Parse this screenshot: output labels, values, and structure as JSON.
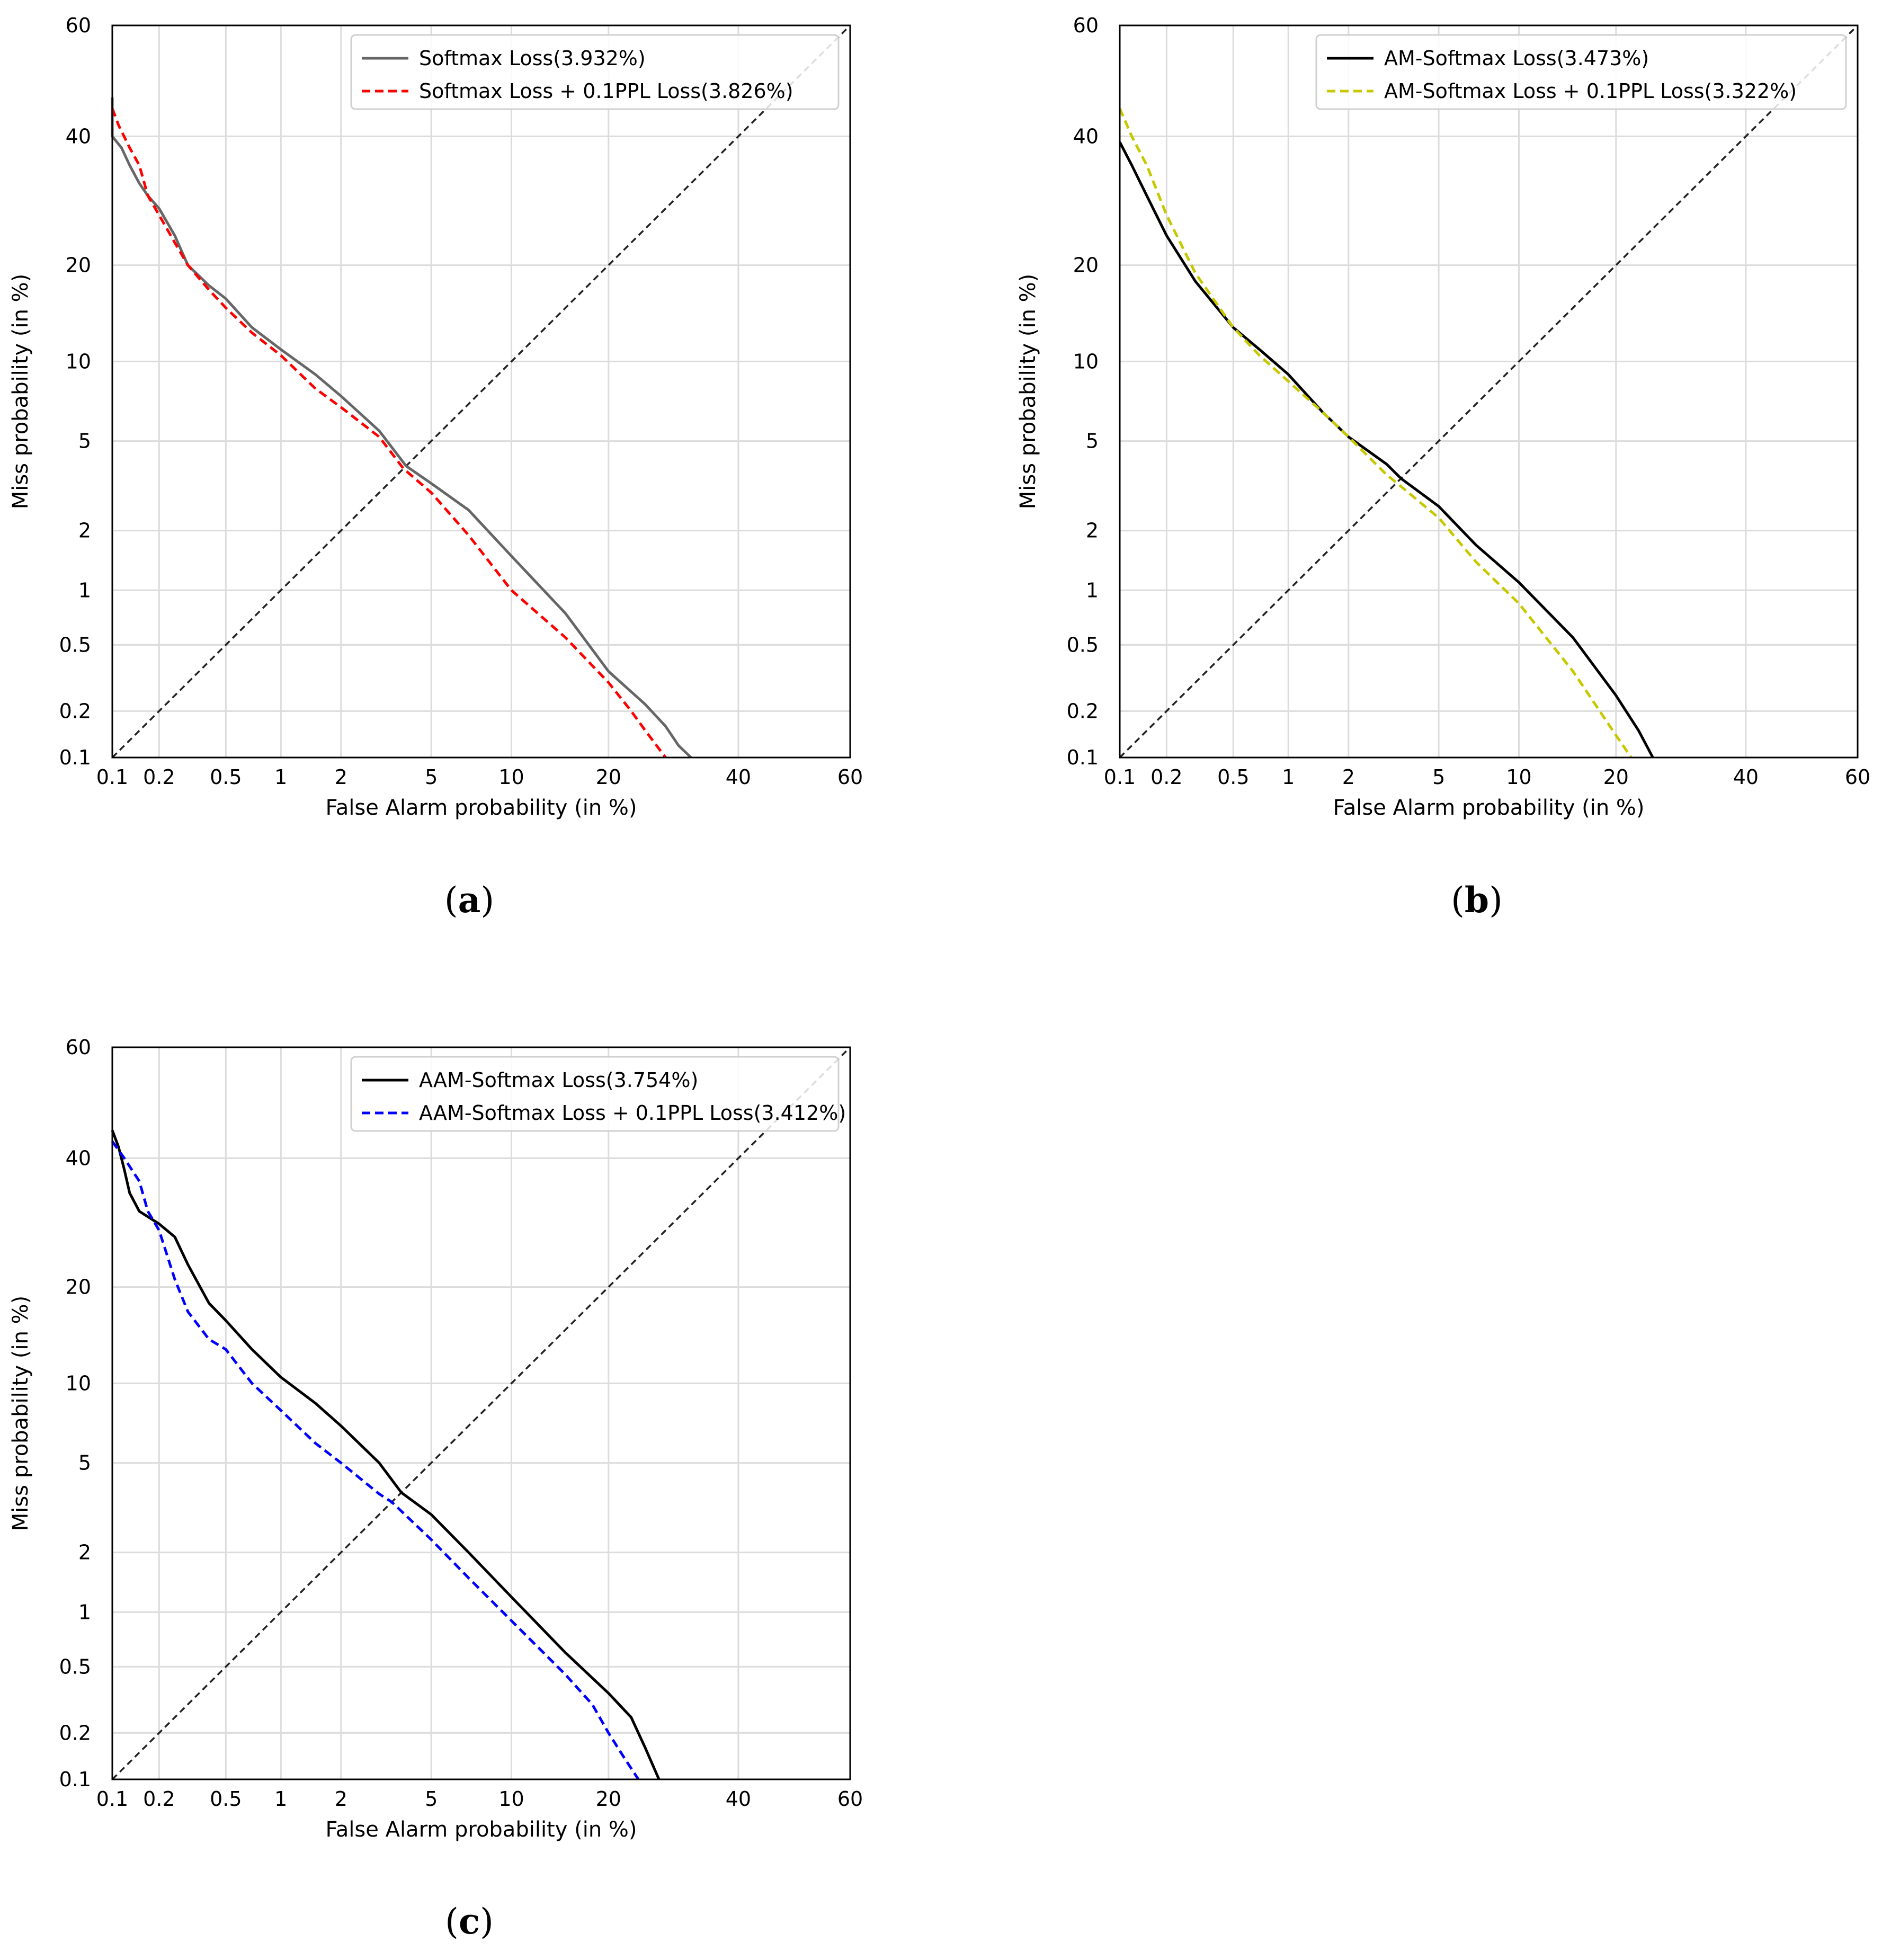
{
  "figure": {
    "captions": [
      "a",
      "b",
      "c"
    ]
  },
  "chart_data": [
    {
      "id": "a",
      "type": "line",
      "subtype": "DET curve (normal-deviate scale)",
      "caption": "a",
      "xlabel": "False Alarm probability (in %)",
      "ylabel": "Miss probability (in %)",
      "xlim": [
        0.1,
        60
      ],
      "ylim": [
        0.1,
        60
      ],
      "xticks": [
        0.1,
        0.2,
        0.5,
        1,
        2,
        5,
        10,
        20,
        40,
        60
      ],
      "yticks": [
        0.1,
        0.2,
        0.5,
        1,
        2,
        5,
        10,
        20,
        40,
        60
      ],
      "grid": true,
      "legend_position": "top-right",
      "diagonal": {
        "style": "dashed",
        "color": "#222222"
      },
      "series": [
        {
          "name": "Softmax Loss(3.932%)",
          "color": "#666666",
          "style": "solid",
          "x": [
            0.1,
            0.1,
            0.115,
            0.13,
            0.15,
            0.17,
            0.2,
            0.25,
            0.3,
            0.4,
            0.5,
            0.7,
            1,
            1.5,
            2,
            3,
            3.93,
            5,
            7,
            10,
            15,
            20,
            25,
            28,
            30,
            32
          ],
          "y": [
            47,
            40,
            38,
            35,
            32,
            30,
            28,
            24,
            20,
            17.5,
            16,
            13,
            11,
            9,
            7.5,
            5.5,
            3.93,
            3.3,
            2.5,
            1.5,
            0.75,
            0.35,
            0.22,
            0.16,
            0.12,
            0.1
          ]
        },
        {
          "name": "Softmax Loss + 0.1PPL Loss(3.826%)",
          "color": "#ff0000",
          "style": "dashed",
          "x": [
            0.1,
            0.11,
            0.13,
            0.15,
            0.17,
            0.2,
            0.25,
            0.3,
            0.4,
            0.5,
            0.7,
            1,
            1.5,
            2,
            3,
            3.83,
            5,
            7,
            10,
            15,
            20,
            23,
            25,
            28
          ],
          "y": [
            45,
            42,
            38,
            35,
            30,
            27,
            23,
            20,
            17,
            15,
            12.5,
            10.5,
            8,
            6.8,
            5.2,
            3.83,
            3,
            1.9,
            1.0,
            0.55,
            0.3,
            0.2,
            0.15,
            0.1
          ]
        }
      ]
    },
    {
      "id": "b",
      "type": "line",
      "subtype": "DET curve (normal-deviate scale)",
      "caption": "b",
      "xlabel": "False Alarm probability (in %)",
      "ylabel": "Miss probability (in %)",
      "xlim": [
        0.1,
        60
      ],
      "ylim": [
        0.1,
        60
      ],
      "xticks": [
        0.1,
        0.2,
        0.5,
        1,
        2,
        5,
        10,
        20,
        40,
        60
      ],
      "yticks": [
        0.1,
        0.2,
        0.5,
        1,
        2,
        5,
        10,
        20,
        40,
        60
      ],
      "grid": true,
      "legend_position": "top-right",
      "diagonal": {
        "style": "dashed",
        "color": "#222222"
      },
      "series": [
        {
          "name": "AM-Softmax Loss(3.473%)",
          "color": "#000000",
          "style": "solid",
          "x": [
            0.1,
            0.12,
            0.15,
            0.2,
            0.3,
            0.5,
            0.7,
            1,
            1.5,
            2,
            3,
            3.47,
            5,
            7,
            10,
            15,
            20,
            23,
            25
          ],
          "y": [
            39,
            35,
            30,
            24,
            18,
            13,
            11,
            9,
            6.5,
            5.2,
            4,
            3.47,
            2.6,
            1.7,
            1.1,
            0.55,
            0.25,
            0.15,
            0.1
          ]
        },
        {
          "name": "AM-Softmax Loss + 0.1PPL Loss(3.322%)",
          "color": "#c8c800",
          "style": "dashed",
          "x": [
            0.1,
            0.12,
            0.15,
            0.2,
            0.3,
            0.5,
            0.7,
            1,
            1.5,
            2,
            3,
            3.32,
            5,
            7,
            10,
            15,
            18,
            20,
            22
          ],
          "y": [
            45,
            40,
            35,
            27,
            19,
            13,
            10.5,
            8.5,
            6.5,
            5.2,
            3.6,
            3.32,
            2.3,
            1.4,
            0.85,
            0.35,
            0.2,
            0.14,
            0.1
          ]
        }
      ]
    },
    {
      "id": "c",
      "type": "line",
      "subtype": "DET curve (normal-deviate scale)",
      "caption": "c",
      "xlabel": "False Alarm probability (in %)",
      "ylabel": "Miss probability (in %)",
      "xlim": [
        0.1,
        60
      ],
      "ylim": [
        0.1,
        60
      ],
      "xticks": [
        0.1,
        0.2,
        0.5,
        1,
        2,
        5,
        10,
        20,
        40,
        60
      ],
      "yticks": [
        0.1,
        0.2,
        0.5,
        1,
        2,
        5,
        10,
        20,
        40,
        60
      ],
      "grid": true,
      "legend_position": "top-right",
      "diagonal": {
        "style": "dashed",
        "color": "#222222"
      },
      "series": [
        {
          "name": "AAM-Softmax Loss(3.754%)",
          "color": "#000000",
          "style": "solid",
          "x": [
            0.1,
            0.11,
            0.12,
            0.13,
            0.15,
            0.2,
            0.25,
            0.3,
            0.4,
            0.5,
            0.7,
            1,
            1.5,
            2,
            3,
            3.75,
            5,
            7,
            10,
            15,
            20,
            23,
            25,
            27
          ],
          "y": [
            45,
            42,
            38,
            34,
            31,
            29,
            27,
            23,
            18,
            16,
            13,
            10.5,
            8.5,
            7,
            5,
            3.75,
            3,
            2,
            1.2,
            0.6,
            0.35,
            0.25,
            0.16,
            0.1
          ]
        },
        {
          "name": "AAM-Softmax Loss + 0.1PPL Loss(3.412%)",
          "color": "#0000ff",
          "style": "dashed",
          "x": [
            0.1,
            0.12,
            0.15,
            0.17,
            0.2,
            0.25,
            0.3,
            0.4,
            0.5,
            0.7,
            1,
            1.5,
            2,
            3,
            3.41,
            5,
            7,
            10,
            15,
            18,
            20,
            22,
            24
          ],
          "y": [
            43,
            40,
            36,
            31,
            28,
            21,
            17,
            14,
            13,
            10,
            8,
            6,
            5,
            3.7,
            3.41,
            2.3,
            1.5,
            0.9,
            0.45,
            0.3,
            0.2,
            0.14,
            0.1
          ]
        }
      ]
    }
  ]
}
